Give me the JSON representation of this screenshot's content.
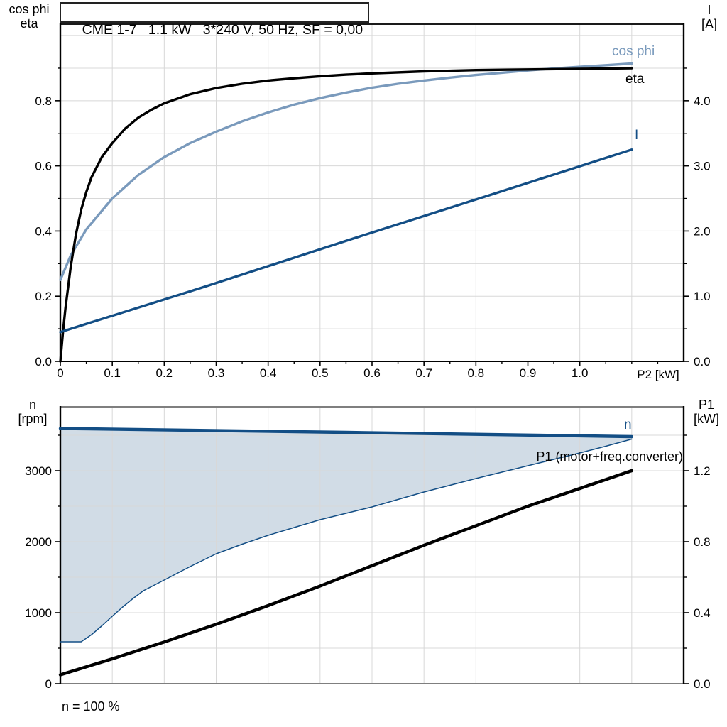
{
  "chart_data": [
    {
      "type": "line",
      "title": "CME 1-7   1.1 kW   3*240 V, 50 Hz, SF = 0,00",
      "x_axis": {
        "label": "P2 [kW]",
        "range": [
          0,
          1.2
        ],
        "grid_step": 0.1,
        "major_ticks": [
          0,
          0.1,
          0.2,
          0.3,
          0.4,
          0.5,
          0.6,
          0.7,
          0.8,
          0.9,
          1.0
        ],
        "tick_labels": [
          "0",
          "0.1",
          "0.2",
          "0.3",
          "0.4",
          "0.5",
          "0.6",
          "0.7",
          "0.8",
          "0.9",
          "1.0"
        ],
        "minor_ticks": [
          0.05,
          0.15,
          0.25,
          0.35,
          0.45,
          0.55,
          0.65,
          0.75,
          0.85,
          0.95,
          1.05,
          1.1,
          1.15
        ]
      },
      "y_left": {
        "label_lines": [
          "cos phi",
          "eta"
        ],
        "range": [
          0,
          1.035
        ],
        "grid_step": 0.1,
        "major_ticks": [
          0,
          0.2,
          0.4,
          0.6,
          0.8
        ],
        "tick_labels": [
          "0.0",
          "0.2",
          "0.4",
          "0.6",
          "0.8"
        ],
        "minor_ticks": [
          0.1,
          0.3,
          0.5,
          0.7,
          0.9
        ]
      },
      "y_right": {
        "label_lines": [
          "I",
          "[A]"
        ],
        "range": [
          0,
          5.175
        ],
        "major_ticks": [
          0,
          1,
          2,
          3,
          4
        ],
        "tick_labels": [
          "0.0",
          "1.0",
          "2.0",
          "3.0",
          "4.0"
        ],
        "minor_ticks": [
          0.5,
          1.5,
          2.5,
          3.5,
          4.5
        ]
      },
      "series": [
        {
          "id": "cos_phi",
          "name": "cos phi",
          "axis": "left",
          "color": "#7A9ABC",
          "width": 3.4,
          "points": [
            [
              0,
              0.25
            ],
            [
              0.02,
              0.325
            ],
            [
              0.05,
              0.405
            ],
            [
              0.08,
              0.462
            ],
            [
              0.1,
              0.5
            ],
            [
              0.15,
              0.572
            ],
            [
              0.2,
              0.627
            ],
            [
              0.25,
              0.67
            ],
            [
              0.3,
              0.705
            ],
            [
              0.35,
              0.737
            ],
            [
              0.4,
              0.764
            ],
            [
              0.45,
              0.788
            ],
            [
              0.5,
              0.808
            ],
            [
              0.55,
              0.825
            ],
            [
              0.6,
              0.84
            ],
            [
              0.65,
              0.852
            ],
            [
              0.7,
              0.862
            ],
            [
              0.75,
              0.871
            ],
            [
              0.8,
              0.879
            ],
            [
              0.85,
              0.886
            ],
            [
              0.9,
              0.893
            ],
            [
              0.95,
              0.899
            ],
            [
              1.0,
              0.904
            ],
            [
              1.05,
              0.909
            ],
            [
              1.1,
              0.914
            ]
          ]
        },
        {
          "id": "eta",
          "name": "eta",
          "axis": "left",
          "color": "#000000",
          "width": 3.4,
          "points": [
            [
              0,
              0
            ],
            [
              0.005,
              0.09
            ],
            [
              0.01,
              0.165
            ],
            [
              0.02,
              0.29
            ],
            [
              0.03,
              0.39
            ],
            [
              0.04,
              0.465
            ],
            [
              0.05,
              0.52
            ],
            [
              0.06,
              0.565
            ],
            [
              0.08,
              0.627
            ],
            [
              0.1,
              0.67
            ],
            [
              0.125,
              0.715
            ],
            [
              0.15,
              0.748
            ],
            [
              0.175,
              0.772
            ],
            [
              0.2,
              0.792
            ],
            [
              0.25,
              0.82
            ],
            [
              0.3,
              0.839
            ],
            [
              0.35,
              0.852
            ],
            [
              0.4,
              0.862
            ],
            [
              0.45,
              0.869
            ],
            [
              0.5,
              0.875
            ],
            [
              0.55,
              0.88
            ],
            [
              0.6,
              0.884
            ],
            [
              0.7,
              0.89
            ],
            [
              0.8,
              0.894
            ],
            [
              0.9,
              0.896
            ],
            [
              1.0,
              0.898
            ],
            [
              1.1,
              0.9
            ]
          ]
        },
        {
          "id": "current",
          "name": "I",
          "axis": "right",
          "color": "#134E85",
          "width": 3.4,
          "points": [
            [
              0,
              0.45
            ],
            [
              0.28,
              1.15
            ],
            [
              0.55,
              1.85
            ],
            [
              0.83,
              2.56
            ],
            [
              1.1,
              3.25
            ]
          ]
        }
      ]
    },
    {
      "type": "line",
      "x_axis": {
        "range": [
          0,
          1.2
        ],
        "grid_step": 0.1
      },
      "y_left": {
        "label_lines": [
          "n",
          "[rpm]"
        ],
        "range": [
          0,
          3900
        ],
        "grid_step": 500,
        "major_ticks": [
          0,
          1000,
          2000,
          3000
        ],
        "tick_labels": [
          "0",
          "1000",
          "2000",
          "3000"
        ],
        "minor_ticks": [
          500,
          1500,
          2500,
          3500
        ]
      },
      "y_right": {
        "label_lines": [
          "P1",
          "[kW]"
        ],
        "range": [
          0,
          1.56
        ],
        "major_ticks": [
          0,
          0.4,
          0.8,
          1.2
        ],
        "tick_labels": [
          "0.0",
          "0.4",
          "0.8",
          "1.2"
        ],
        "minor_ticks": [
          0.2,
          0.6,
          1.0,
          1.4
        ]
      },
      "series": [
        {
          "id": "n",
          "name": "n",
          "axis": "left",
          "color": "#134E85",
          "width": 4.4,
          "points": [
            [
              0,
              3595
            ],
            [
              0.55,
              3540
            ],
            [
              1.1,
              3480
            ]
          ]
        },
        {
          "id": "n_min",
          "name": "",
          "axis": "left",
          "color": "#134E85",
          "width": 1.5,
          "points": [
            [
              0,
              590
            ],
            [
              0.04,
              590
            ],
            [
              0.06,
              690
            ],
            [
              0.08,
              815
            ],
            [
              0.1,
              950
            ],
            [
              0.12,
              1080
            ],
            [
              0.14,
              1200
            ],
            [
              0.16,
              1310
            ],
            [
              0.2,
              1460
            ],
            [
              0.25,
              1650
            ],
            [
              0.3,
              1830
            ],
            [
              0.35,
              1965
            ],
            [
              0.4,
              2090
            ],
            [
              0.45,
              2200
            ],
            [
              0.5,
              2310
            ],
            [
              0.55,
              2400
            ],
            [
              0.6,
              2490
            ],
            [
              0.7,
              2700
            ],
            [
              0.8,
              2890
            ],
            [
              0.9,
              3070
            ],
            [
              1.0,
              3250
            ],
            [
              1.05,
              3345
            ],
            [
              1.1,
              3445
            ]
          ]
        },
        {
          "id": "p1",
          "name": "P1 (motor+freq.converter)",
          "axis": "right",
          "color": "#000000",
          "width": 4.4,
          "points": [
            [
              0,
              0.05
            ],
            [
              0.1,
              0.14
            ],
            [
              0.2,
              0.235
            ],
            [
              0.3,
              0.335
            ],
            [
              0.4,
              0.44
            ],
            [
              0.5,
              0.55
            ],
            [
              0.6,
              0.665
            ],
            [
              0.7,
              0.78
            ],
            [
              0.8,
              0.89
            ],
            [
              0.9,
              1.0
            ],
            [
              1.0,
              1.1
            ],
            [
              1.1,
              1.2
            ]
          ]
        }
      ],
      "area": {
        "between": [
          "n",
          "n_min"
        ],
        "fill": "#D1DCE6"
      },
      "annotation": "n = 100 %"
    }
  ],
  "colors": {
    "grid": "#D8D8D8",
    "axis": "#000000",
    "frame_gray": "#7F7F7F",
    "accent_blue": "#134E85",
    "accent_lightblue": "#7A9ABC"
  }
}
